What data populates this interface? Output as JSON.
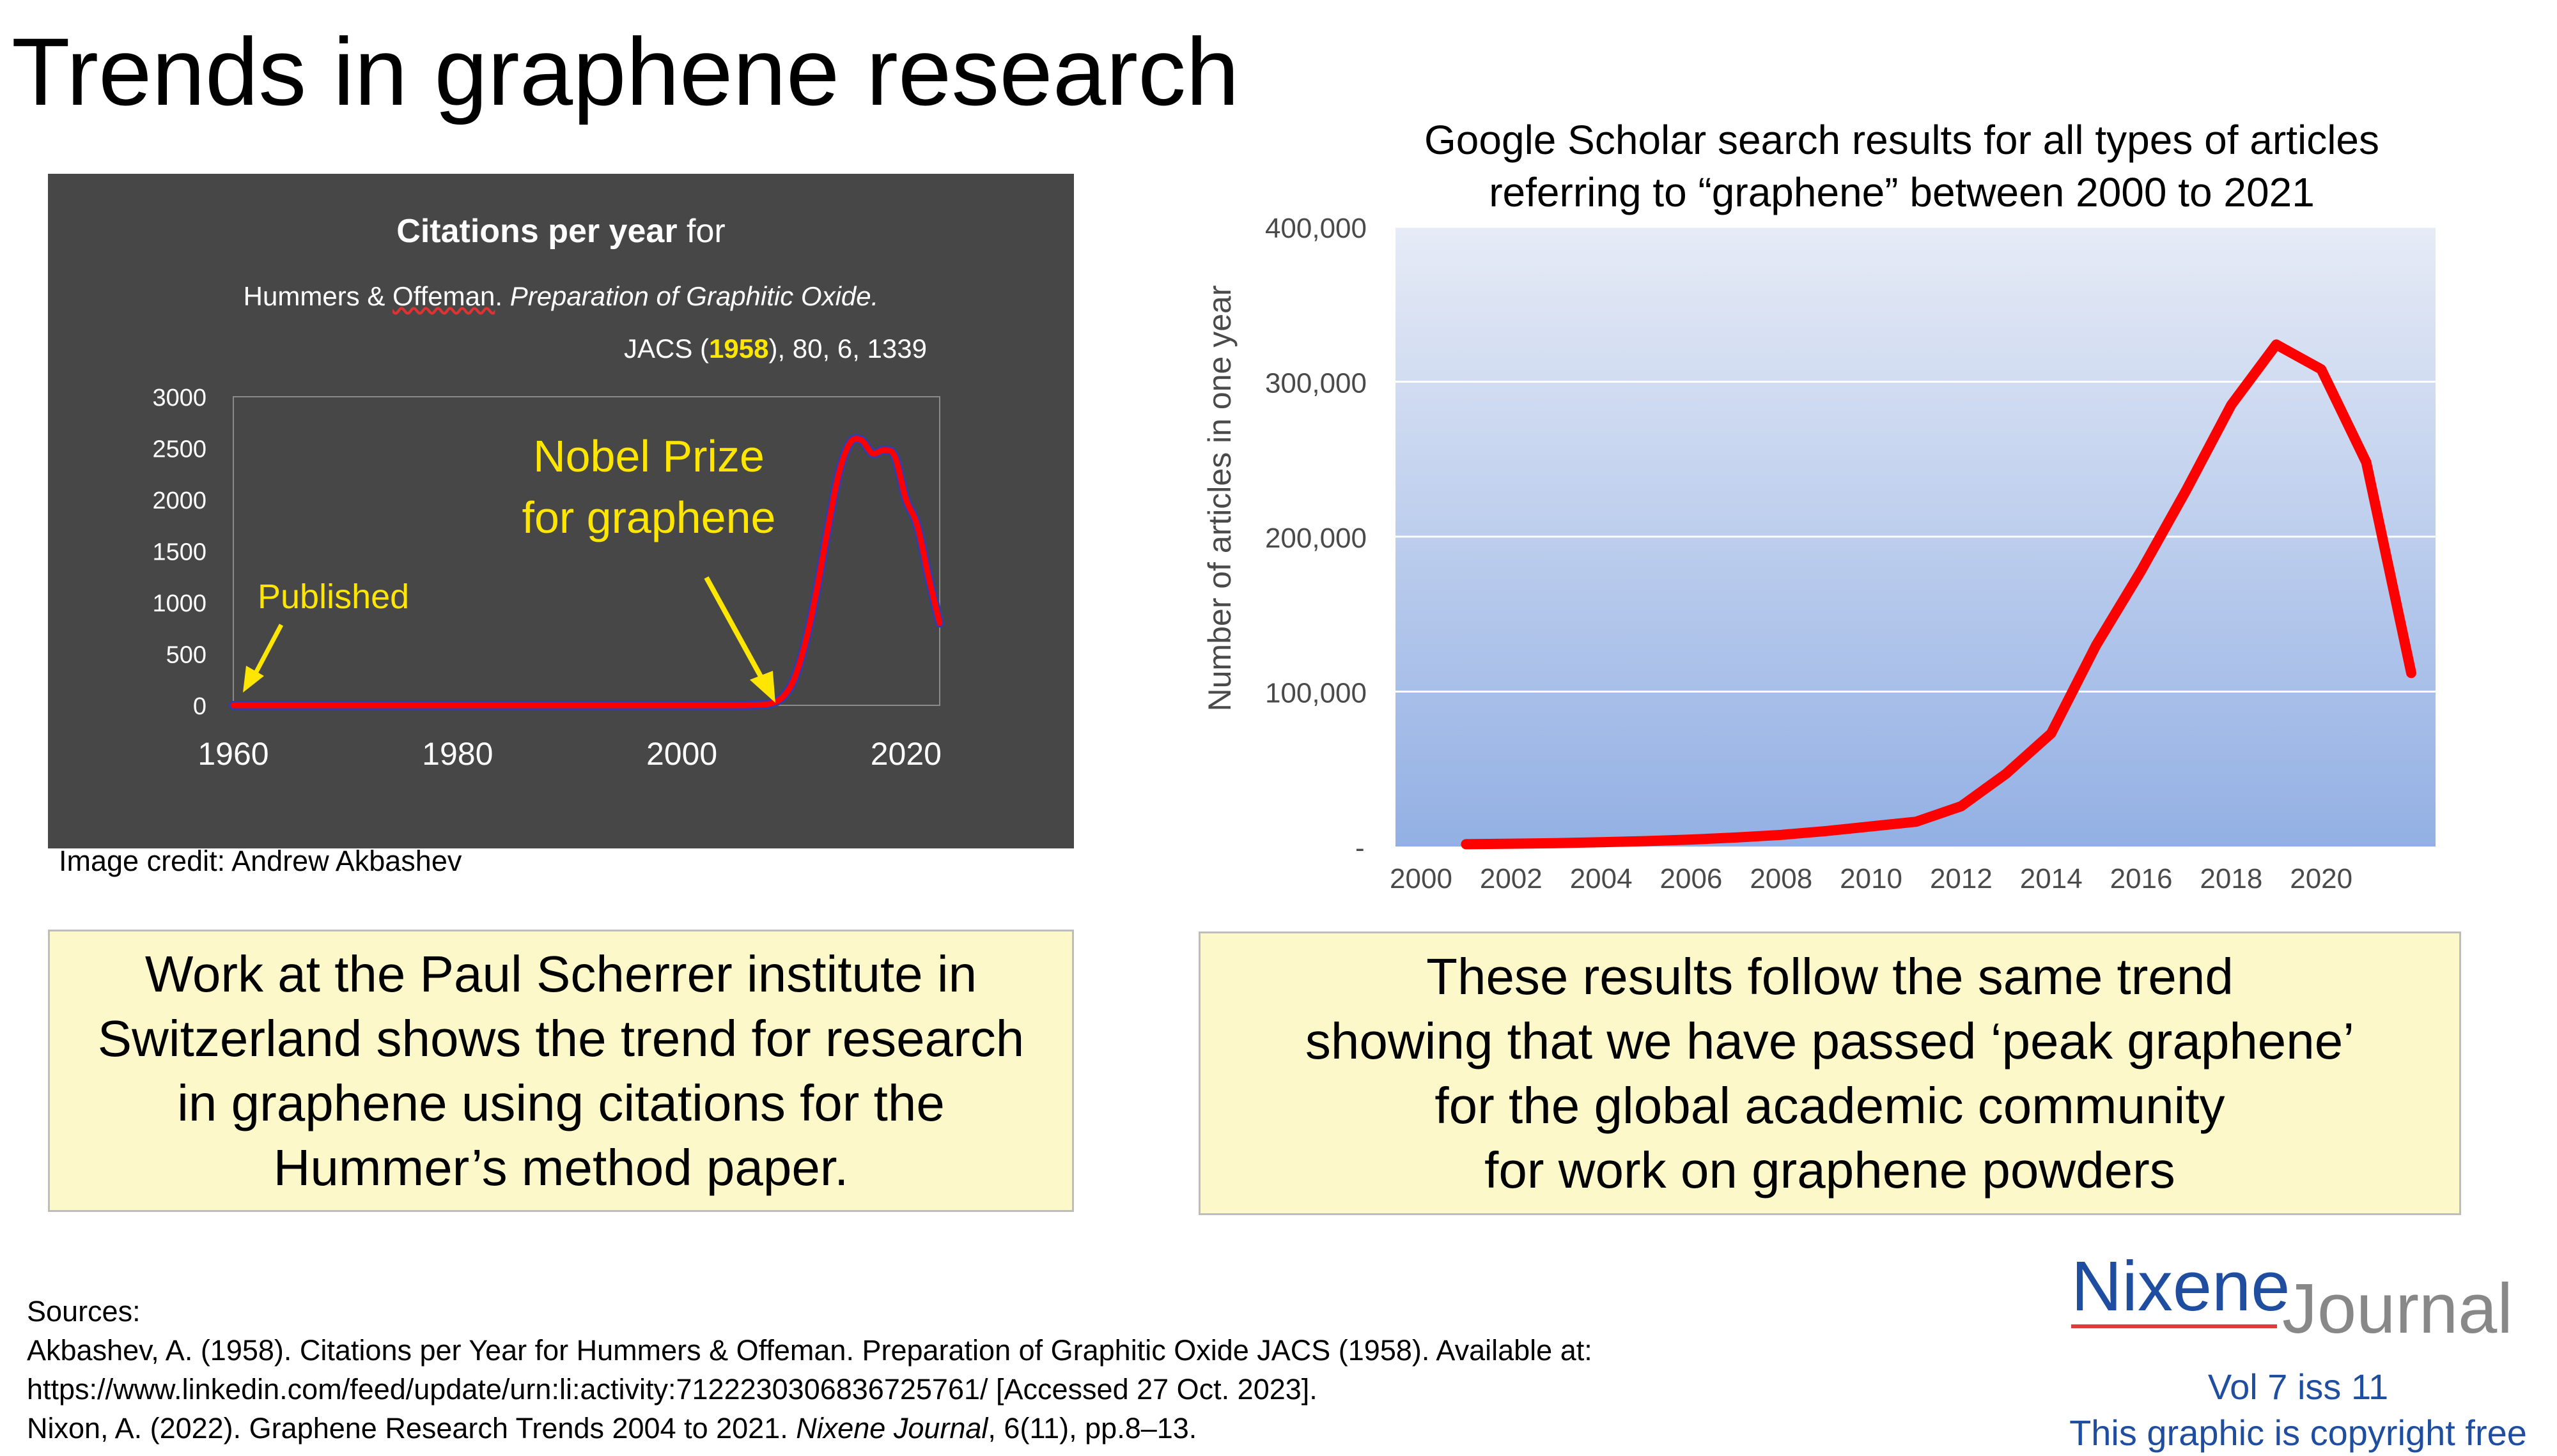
{
  "page": {
    "title": "Trends in graphene research"
  },
  "left_chart": {
    "title_bold": "Citations per year",
    "title_rest": " for",
    "ref_line1_a": "Hummers & ",
    "ref_line1_b": "Offeman",
    "ref_line1_c": ". ",
    "ref_line1_italic": "Preparation of Graphitic Oxide.",
    "ref_line2_a": "JACS (",
    "ref_line2_year": "1958",
    "ref_line2_b": "), 80, 6, 1339",
    "annotation_published": "Published",
    "annotation_nobel_1": "Nobel Prize",
    "annotation_nobel_2": "for graphene",
    "colors": {
      "background": "#474747",
      "line": "#ff0000",
      "annotation": "#ffe600",
      "text": "#ffffff"
    }
  },
  "image_credit": "Image credit: Andrew Akbashev",
  "right_chart": {
    "title_line1": "Google Scholar search results for all types of articles",
    "title_line2": "referring to “graphene” between 2000 to 2021",
    "colors": {
      "line": "#ff0000",
      "gradient_top": "#e6ebf6",
      "gradient_bottom": "#93b0e4"
    }
  },
  "left_box": {
    "lines": [
      "Work at the Paul Scherrer institute in",
      "Switzerland shows the trend for research",
      "in graphene using citations for the",
      "Hummer’s method paper."
    ]
  },
  "right_box": {
    "lines": [
      "These results follow the same trend",
      "showing that we have passed ‘peak graphene’",
      "for the global academic community",
      "for work on graphene powders"
    ]
  },
  "sources": {
    "heading": "Sources:",
    "line1": "Akbashev, A. (1958). Citations per Year for Hummers & Offeman. Preparation of Graphitic Oxide JACS (1958). Available at:",
    "line2": "https://www.linkedin.com/feed/update/urn:li:activity:7122230306836725761/ [Accessed 27 Oct. 2023].",
    "line3_a": "Nixon, A. (2022). Graphene Research Trends 2004 to 2021. ",
    "line3_italic": "Nixene Journal",
    "line3_b": ", 6(11), pp.8–13."
  },
  "logo": {
    "nixene": "Nixene",
    "journal": "Journal",
    "vol": "Vol 7 iss 11",
    "copyright": "This graphic is copyright free"
  },
  "chart_data": [
    {
      "type": "line",
      "title": "Citations per year for",
      "subtitle": "Hummers & Offeman. Preparation of Graphitic Oxide. JACS (1958), 80, 6, 1339",
      "xlabel": "",
      "ylabel": "",
      "xlim": [
        1960,
        2023
      ],
      "ylim": [
        0,
        3000
      ],
      "x_ticks": [
        "1960",
        "1980",
        "2000",
        "2020"
      ],
      "y_ticks": [
        "0",
        "500",
        "1000",
        "1500",
        "2000",
        "2500",
        "3000"
      ],
      "x": [
        1960,
        1970,
        1980,
        1990,
        2000,
        2005,
        2007,
        2008,
        2009,
        2010,
        2011,
        2012,
        2013,
        2014,
        2015,
        2016,
        2017,
        2018,
        2019,
        2020,
        2021,
        2022,
        2023
      ],
      "series": [
        {
          "values": [
            0,
            0,
            0,
            0,
            0,
            0,
            5,
            20,
            80,
            250,
            600,
            1100,
            1700,
            2250,
            2550,
            2580,
            2450,
            2480,
            2420,
            2000,
            1750,
            1250,
            800
          ]
        }
      ],
      "annotations": [
        {
          "text": "Published",
          "x": 1960,
          "y": 0
        },
        {
          "text": "Nobel Prize for graphene",
          "x": 2008,
          "y": 0
        }
      ],
      "grid": false
    },
    {
      "type": "line",
      "title": "Google Scholar search results for all types of articles referring to “graphene” between 2000 to 2021",
      "xlabel": "",
      "ylabel": "Number of articles in one year",
      "xlim": [
        2000,
        2022
      ],
      "ylim": [
        0,
        400000
      ],
      "x_ticks": [
        "2000",
        "2002",
        "2004",
        "2006",
        "2008",
        "2010",
        "2012",
        "2014",
        "2016",
        "2018",
        "2020"
      ],
      "y_ticks": [
        "-",
        "100,000",
        "200,000",
        "300,000",
        "400,000"
      ],
      "x": [
        2001,
        2002,
        2003,
        2004,
        2005,
        2006,
        2007,
        2008,
        2009,
        2010,
        2011,
        2012,
        2013,
        2014,
        2015,
        2016,
        2017,
        2018,
        2019,
        2020,
        2021,
        2022
      ],
      "series": [
        {
          "values": [
            1500,
            1800,
            2200,
            2800,
            3500,
            4500,
            5800,
            7500,
            10000,
            13000,
            16000,
            26000,
            47000,
            73000,
            130000,
            178000,
            230000,
            285000,
            324000,
            308000,
            248000,
            112000
          ]
        }
      ],
      "grid": true
    }
  ]
}
